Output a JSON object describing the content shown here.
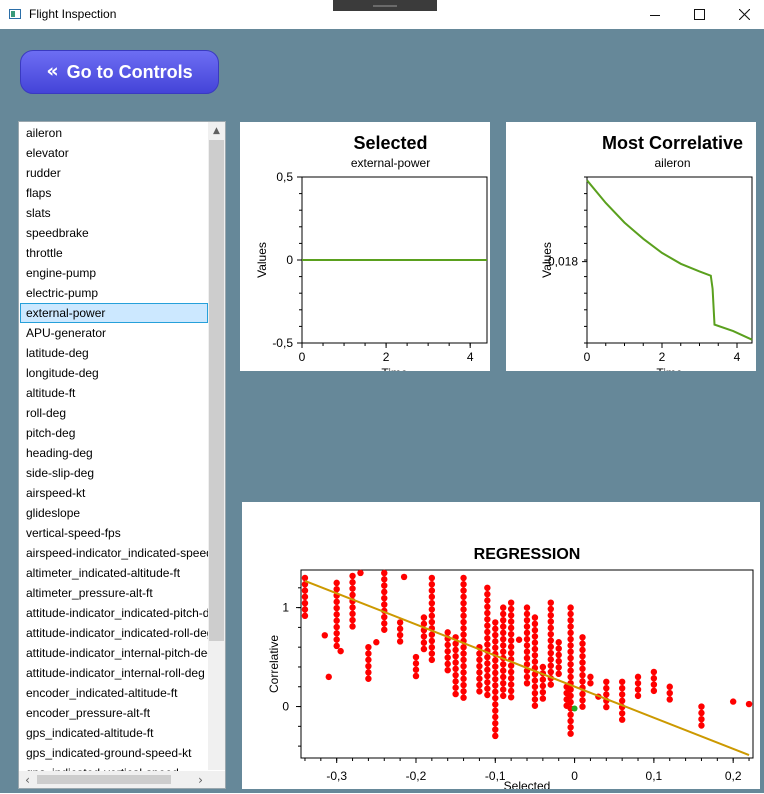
{
  "window": {
    "title": "Flight Inspection",
    "minimize_icon": "minimize-icon",
    "maximize_icon": "maximize-icon",
    "close_icon": "close-icon"
  },
  "nav": {
    "go_controls_label": "Go to Controls",
    "chevron_icon": "double-chevron-left-icon"
  },
  "list": {
    "selected": "external-power",
    "items": [
      "aileron",
      "elevator",
      "rudder",
      "flaps",
      "slats",
      "speedbrake",
      "throttle",
      "engine-pump",
      "electric-pump",
      "external-power",
      "APU-generator",
      "latitude-deg",
      "longitude-deg",
      "altitude-ft",
      "roll-deg",
      "pitch-deg",
      "heading-deg",
      "side-slip-deg",
      "airspeed-kt",
      "glideslope",
      "vertical-speed-fps",
      "airspeed-indicator_indicated-speed-kt",
      "altimeter_indicated-altitude-ft",
      "altimeter_pressure-alt-ft",
      "attitude-indicator_indicated-pitch-deg",
      "attitude-indicator_indicated-roll-deg",
      "attitude-indicator_internal-pitch-deg",
      "attitude-indicator_internal-roll-deg",
      "encoder_indicated-altitude-ft",
      "encoder_pressure-alt-ft",
      "gps_indicated-altitude-ft",
      "gps_indicated-ground-speed-kt",
      "gps_indicated-vertical-speed"
    ]
  },
  "colors": {
    "background": "#668899",
    "line": "#5aa01e",
    "points": "#ff0000",
    "regression": "#cc9900",
    "highlight": "#22aa22",
    "button": "#5a5ae8"
  },
  "chart_data": [
    {
      "type": "line",
      "title": "Selected",
      "subtitle": "external-power",
      "xlabel": "Time",
      "ylabel": "Values",
      "xlim": [
        0,
        4.4
      ],
      "ylim": [
        -0.5,
        0.5
      ],
      "xticks": [
        "0",
        "2",
        "4"
      ],
      "yticks": [
        "0,5",
        "0",
        "-0,5"
      ],
      "series": [
        {
          "x": [
            0,
            4.4
          ],
          "y": [
            0,
            0
          ]
        }
      ]
    },
    {
      "type": "line",
      "title": "Most Correlative",
      "subtitle": "aileron",
      "xlabel": "Time",
      "ylabel": "Values",
      "xlim": [
        0,
        4.4
      ],
      "ylim": [
        -0.0255,
        -0.0102
      ],
      "xticks": [
        "0",
        "2",
        "4"
      ],
      "yticks": [
        "-0,018"
      ],
      "series": [
        {
          "x": [
            0,
            0.5,
            1,
            1.5,
            2,
            2.5,
            3,
            3.3,
            3.35,
            3.4,
            3.9,
            4.4
          ],
          "y": [
            -0.0105,
            -0.0126,
            -0.0144,
            -0.0159,
            -0.0172,
            -0.0182,
            -0.0189,
            -0.0193,
            -0.0205,
            -0.0238,
            -0.0244,
            -0.0252
          ]
        }
      ]
    },
    {
      "type": "scatter",
      "title": "REGRESSION",
      "xlabel": "Selected",
      "ylabel": "Correlative",
      "xlim": [
        -0.345,
        0.225
      ],
      "ylim": [
        -0.52,
        1.38
      ],
      "xticks": [
        "-0,3",
        "-0,2",
        "-0,1",
        "0",
        "0,1",
        "0,2"
      ],
      "yticks": [
        "1",
        "0"
      ],
      "regression": {
        "x": [
          -0.34,
          0.22
        ],
        "y": [
          1.27,
          -0.49
        ]
      },
      "highlight_point": {
        "x": 0.0,
        "y": -0.02
      },
      "columns": [
        {
          "x": -0.34,
          "y_min": 0.87,
          "y_max": 1.3
        },
        {
          "x": -0.315,
          "y_min": 0.72,
          "y_max": 0.72
        },
        {
          "x": -0.31,
          "y_min": 0.3,
          "y_max": 0.3
        },
        {
          "x": -0.3,
          "y_min": 0.55,
          "y_max": 1.25
        },
        {
          "x": -0.295,
          "y_min": 0.56,
          "y_max": 0.56
        },
        {
          "x": -0.28,
          "y_min": 0.75,
          "y_max": 1.32
        },
        {
          "x": -0.27,
          "y_min": 1.35,
          "y_max": 1.35
        },
        {
          "x": -0.26,
          "y_min": 0.23,
          "y_max": 0.6
        },
        {
          "x": -0.25,
          "y_min": 0.65,
          "y_max": 0.65
        },
        {
          "x": -0.24,
          "y_min": 0.75,
          "y_max": 1.35
        },
        {
          "x": -0.22,
          "y_min": 0.62,
          "y_max": 0.85
        },
        {
          "x": -0.215,
          "y_min": 1.31,
          "y_max": 1.31
        },
        {
          "x": -0.2,
          "y_min": 0.25,
          "y_max": 0.5
        },
        {
          "x": -0.19,
          "y_min": 0.55,
          "y_max": 0.9
        },
        {
          "x": -0.18,
          "y_min": 0.45,
          "y_max": 1.3
        },
        {
          "x": -0.16,
          "y_min": 0.35,
          "y_max": 0.75
        },
        {
          "x": -0.15,
          "y_min": 0.1,
          "y_max": 0.7
        },
        {
          "x": -0.14,
          "y_min": 0.05,
          "y_max": 1.3
        },
        {
          "x": -0.12,
          "y_min": 0.15,
          "y_max": 0.6
        },
        {
          "x": -0.11,
          "y_min": 0.1,
          "y_max": 1.2
        },
        {
          "x": -0.1,
          "y_min": -0.3,
          "y_max": 0.85
        },
        {
          "x": -0.09,
          "y_min": 0.05,
          "y_max": 1.0
        },
        {
          "x": -0.08,
          "y_min": 0.05,
          "y_max": 1.05
        },
        {
          "x": -0.07,
          "y_min": 0.65,
          "y_max": 0.7
        },
        {
          "x": -0.06,
          "y_min": 0.2,
          "y_max": 1.0
        },
        {
          "x": -0.05,
          "y_min": -0.05,
          "y_max": 0.9
        },
        {
          "x": -0.04,
          "y_min": 0.05,
          "y_max": 0.4
        },
        {
          "x": -0.03,
          "y_min": 0.2,
          "y_max": 1.05
        },
        {
          "x": -0.02,
          "y_min": 0.3,
          "y_max": 0.65
        },
        {
          "x": -0.01,
          "y_min": 0.0,
          "y_max": 0.2
        },
        {
          "x": -0.005,
          "y_min": -0.3,
          "y_max": 1.0
        },
        {
          "x": 0.01,
          "y_min": -0.05,
          "y_max": 0.7
        },
        {
          "x": 0.02,
          "y_min": 0.2,
          "y_max": 0.3
        },
        {
          "x": 0.03,
          "y_min": 0.1,
          "y_max": 0.1
        },
        {
          "x": 0.04,
          "y_min": -0.05,
          "y_max": 0.25
        },
        {
          "x": 0.06,
          "y_min": -0.15,
          "y_max": 0.25
        },
        {
          "x": 0.08,
          "y_min": 0.05,
          "y_max": 0.3
        },
        {
          "x": 0.1,
          "y_min": 0.15,
          "y_max": 0.35
        },
        {
          "x": 0.12,
          "y_min": 0.05,
          "y_max": 0.2
        },
        {
          "x": 0.16,
          "y_min": -0.25,
          "y_max": 0.0
        },
        {
          "x": 0.2,
          "y_min": 0.05,
          "y_max": 0.05
        },
        {
          "x": 0.22,
          "y_min": 0.0,
          "y_max": 0.05
        }
      ]
    }
  ]
}
